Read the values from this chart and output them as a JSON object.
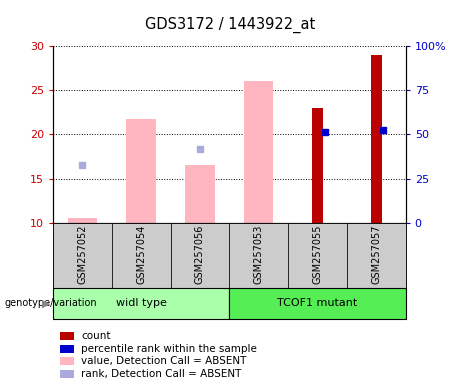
{
  "title": "GDS3172 / 1443922_at",
  "samples": [
    "GSM257052",
    "GSM257054",
    "GSM257056",
    "GSM257053",
    "GSM257055",
    "GSM257057"
  ],
  "groups": [
    {
      "label": "widl type",
      "indices": [
        0,
        1,
        2
      ],
      "color": "#aaffaa"
    },
    {
      "label": "TCOF1 mutant",
      "indices": [
        3,
        4,
        5
      ],
      "color": "#55ee55"
    }
  ],
  "ylim_left": [
    10,
    30
  ],
  "ylim_right": [
    0,
    100
  ],
  "yticks_left": [
    10,
    15,
    20,
    25,
    30
  ],
  "yticks_right": [
    0,
    25,
    50,
    75,
    100
  ],
  "ytick_labels_right": [
    "0",
    "25",
    "50",
    "75",
    "100%"
  ],
  "pink_bars": {
    "present": [
      true,
      true,
      true,
      true,
      false,
      false
    ],
    "tops": [
      10.5,
      21.8,
      16.5,
      26.0,
      10,
      10
    ],
    "color": "#ffb6c1"
  },
  "red_bars": {
    "present": [
      false,
      false,
      false,
      false,
      true,
      true
    ],
    "tops": [
      10,
      10,
      10,
      10,
      23.0,
      29.0
    ],
    "color": "#bb0000"
  },
  "blue_markers": {
    "present": [
      false,
      false,
      false,
      false,
      true,
      true
    ],
    "values": [
      0,
      0,
      0,
      0,
      20.3,
      20.5
    ],
    "color": "#0000cc"
  },
  "light_blue_markers": {
    "present": [
      true,
      false,
      true,
      false,
      false,
      false
    ],
    "values": [
      16.5,
      0,
      18.3,
      0,
      0,
      0
    ],
    "color": "#aaaadd"
  },
  "legend_items": [
    {
      "label": "count",
      "color": "#bb0000"
    },
    {
      "label": "percentile rank within the sample",
      "color": "#0000cc"
    },
    {
      "label": "value, Detection Call = ABSENT",
      "color": "#ffb6c1"
    },
    {
      "label": "rank, Detection Call = ABSENT",
      "color": "#aaaadd"
    }
  ],
  "left_axis_color": "#cc0000",
  "right_axis_color": "#0000cc",
  "pink_bar_width": 0.5,
  "red_bar_width": 0.18,
  "background_plot": "#ffffff",
  "background_label": "#cccccc",
  "genotype_label": "genotype/variation"
}
